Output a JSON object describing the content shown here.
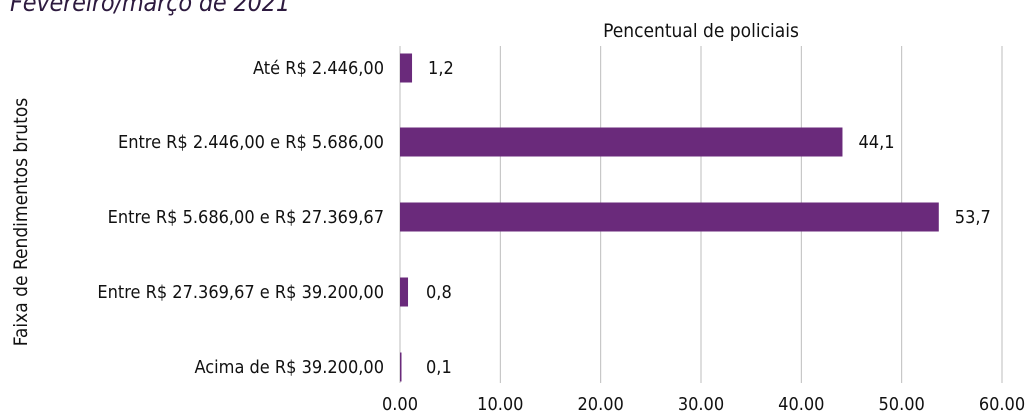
{
  "subtitle": "Fevereiro/março de 2021",
  "chart_data": {
    "type": "bar",
    "orientation": "horizontal",
    "title": "Pencentual de policiais",
    "xlabel": "",
    "ylabel": "Faixa de Rendimentos brutos",
    "categories": [
      "Até R$ 2.446,00",
      "Entre R$ 2.446,00 e R$ 5.686,00",
      "Entre R$ 5.686,00 e R$ 27.369,67",
      "Entre R$ 27.369,67 e R$ 39.200,00",
      "Acima de R$ 39.200,00"
    ],
    "values": [
      1.2,
      44.1,
      53.7,
      0.8,
      0.1
    ],
    "value_labels": [
      "1,2",
      "44,1",
      "53,7",
      "0,8",
      "0,1"
    ],
    "xlim": [
      0,
      60
    ],
    "ticks": [
      0,
      10,
      20,
      30,
      40,
      50,
      60
    ],
    "tick_labels": [
      "0.00",
      "10.00",
      "20.00",
      "30.00",
      "40.00",
      "50.00",
      "60.00"
    ],
    "grid": "vertical",
    "bar_color": "#6a2a7b",
    "grid_color": "#bdbdbd"
  }
}
